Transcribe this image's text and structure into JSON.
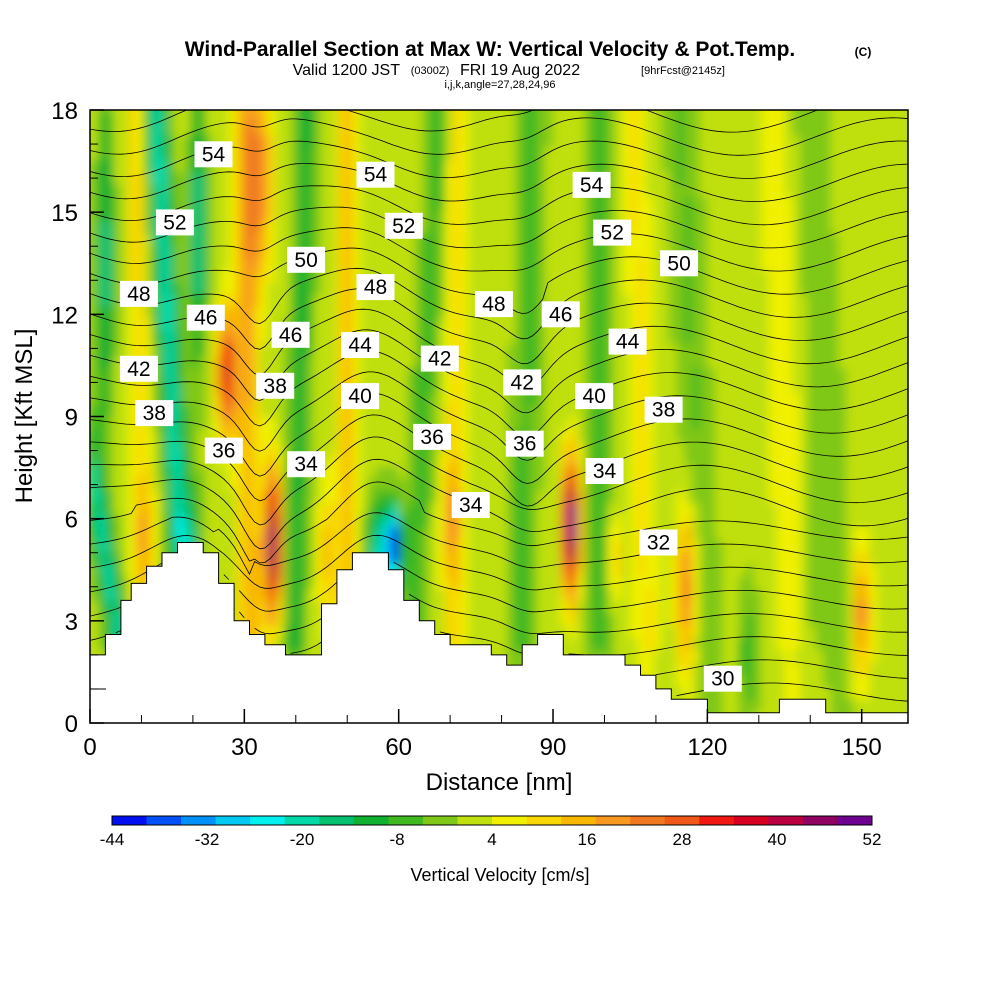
{
  "chart_data": {
    "type": "heatmap",
    "title": "Wind-Parallel Section at Max W: Vertical Velocity & Pot.Temp.",
    "copyright": "(C)",
    "subtitle": {
      "valid_prefix": "Valid 1200 JST",
      "utc": "(0300Z)",
      "date": "FRI 19 Aug 2022",
      "forecast": "[9hrFcst@2145z]"
    },
    "grid_info": "i,j,k,angle=27,28,24,96",
    "xlabel": "Distance [nm]",
    "ylabel": "Height [Kft MSL]",
    "xlim": [
      0,
      159
    ],
    "ylim": [
      0,
      18
    ],
    "x_ticks": [
      0,
      30,
      60,
      90,
      120,
      150
    ],
    "y_ticks": [
      0,
      3,
      6,
      9,
      12,
      15,
      18
    ],
    "colorbar": {
      "label": "Vertical Velocity [cm/s]",
      "tick_labels": [
        "-44",
        "-32",
        "-20",
        "-8",
        "4",
        "16",
        "28",
        "40",
        "52"
      ],
      "colors": [
        "#0010f0",
        "#0050f8",
        "#0090f8",
        "#00c8f0",
        "#00f0f0",
        "#00d8a8",
        "#00c070",
        "#10b030",
        "#40b820",
        "#80c818",
        "#c0e010",
        "#f0f000",
        "#f8d800",
        "#f8b800",
        "#f89820",
        "#f07820",
        "#f05818",
        "#f01810",
        "#d80020",
        "#b80040",
        "#900060",
        "#700090"
      ]
    },
    "terrain": [
      [
        0,
        2
      ],
      [
        3,
        2
      ],
      [
        3,
        2.6
      ],
      [
        6,
        2.6
      ],
      [
        6,
        3.6
      ],
      [
        8,
        3.6
      ],
      [
        8,
        4.1
      ],
      [
        11,
        4.1
      ],
      [
        11,
        4.6
      ],
      [
        14,
        4.6
      ],
      [
        14,
        5.0
      ],
      [
        17,
        5.0
      ],
      [
        17,
        5.3
      ],
      [
        22,
        5.3
      ],
      [
        22,
        5.0
      ],
      [
        25,
        5.0
      ],
      [
        25,
        4.1
      ],
      [
        28,
        4.1
      ],
      [
        28,
        3.0
      ],
      [
        31,
        3.0
      ],
      [
        31,
        2.6
      ],
      [
        34,
        2.6
      ],
      [
        34,
        2.3
      ],
      [
        38,
        2.3
      ],
      [
        38,
        2.0
      ],
      [
        45,
        2.0
      ],
      [
        45,
        3.5
      ],
      [
        48,
        3.5
      ],
      [
        48,
        4.5
      ],
      [
        51,
        4.5
      ],
      [
        51,
        5.0
      ],
      [
        58,
        5.0
      ],
      [
        58,
        4.5
      ],
      [
        61,
        4.5
      ],
      [
        61,
        3.6
      ],
      [
        64,
        3.6
      ],
      [
        64,
        3.0
      ],
      [
        67,
        3.0
      ],
      [
        67,
        2.6
      ],
      [
        70,
        2.6
      ],
      [
        70,
        2.3
      ],
      [
        78,
        2.3
      ],
      [
        78,
        2.0
      ],
      [
        81,
        2.0
      ],
      [
        81,
        1.7
      ],
      [
        84,
        1.7
      ],
      [
        84,
        2.3
      ],
      [
        87,
        2.3
      ],
      [
        87,
        2.6
      ],
      [
        92,
        2.6
      ],
      [
        92,
        2.0
      ],
      [
        104,
        2.0
      ],
      [
        104,
        1.7
      ],
      [
        107,
        1.7
      ],
      [
        107,
        1.4
      ],
      [
        110,
        1.4
      ],
      [
        110,
        1.0
      ],
      [
        113,
        1.0
      ],
      [
        113,
        0.7
      ],
      [
        120,
        0.7
      ],
      [
        120,
        0.3
      ],
      [
        134,
        0.3
      ],
      [
        134,
        0.7
      ],
      [
        143,
        0.7
      ],
      [
        143,
        0.3
      ],
      [
        159,
        0.3
      ]
    ],
    "velocity_features": [
      {
        "x": 35.5,
        "y": 5.3,
        "value": 45
      },
      {
        "x": 93.5,
        "y": 5.8,
        "value": 52
      },
      {
        "x": 26.5,
        "y": 10.3,
        "value": 38
      },
      {
        "x": 59,
        "y": 5.3,
        "value": -44
      },
      {
        "x": 22,
        "y": 14.5,
        "value": -26
      },
      {
        "x": 3,
        "y": 14,
        "value": -22
      },
      {
        "x": 70,
        "y": 5.8,
        "value": 12
      },
      {
        "x": 115,
        "y": 4.0,
        "value": 24
      },
      {
        "x": 150,
        "y": 3.2,
        "value": 20
      },
      {
        "x": 128,
        "y": 2.0,
        "value": -10
      },
      {
        "x": 80,
        "y": 13,
        "value": -6
      },
      {
        "x": 145,
        "y": 13,
        "value": 2
      }
    ],
    "contour_labels": [
      {
        "text": "54",
        "x": 24,
        "y": 16.7
      },
      {
        "text": "54",
        "x": 55.5,
        "y": 16.1
      },
      {
        "text": "54",
        "x": 97.5,
        "y": 15.8
      },
      {
        "text": "52",
        "x": 16.5,
        "y": 14.7
      },
      {
        "text": "52",
        "x": 61,
        "y": 14.6
      },
      {
        "text": "52",
        "x": 101.5,
        "y": 14.4
      },
      {
        "text": "50",
        "x": 42,
        "y": 13.6
      },
      {
        "text": "50",
        "x": 114.5,
        "y": 13.5
      },
      {
        "text": "48",
        "x": 9.5,
        "y": 12.6
      },
      {
        "text": "48",
        "x": 55.5,
        "y": 12.8
      },
      {
        "text": "48",
        "x": 78.5,
        "y": 12.3
      },
      {
        "text": "46",
        "x": 22.5,
        "y": 11.9
      },
      {
        "text": "46",
        "x": 39,
        "y": 11.4
      },
      {
        "text": "46",
        "x": 91.5,
        "y": 12.0
      },
      {
        "text": "44",
        "x": 52.5,
        "y": 11.1
      },
      {
        "text": "44",
        "x": 104.5,
        "y": 11.2
      },
      {
        "text": "42",
        "x": 9.5,
        "y": 10.4
      },
      {
        "text": "42",
        "x": 68,
        "y": 10.7
      },
      {
        "text": "42",
        "x": 84,
        "y": 10.0
      },
      {
        "text": "40",
        "x": 52.5,
        "y": 9.6
      },
      {
        "text": "40",
        "x": 98,
        "y": 9.6
      },
      {
        "text": "38",
        "x": 12.5,
        "y": 9.1
      },
      {
        "text": "38",
        "x": 36,
        "y": 9.9
      },
      {
        "text": "38",
        "x": 111.5,
        "y": 9.2
      },
      {
        "text": "36",
        "x": 26,
        "y": 8.0
      },
      {
        "text": "36",
        "x": 66.5,
        "y": 8.4
      },
      {
        "text": "36",
        "x": 84.5,
        "y": 8.2
      },
      {
        "text": "34",
        "x": 42,
        "y": 7.6
      },
      {
        "text": "34",
        "x": 74,
        "y": 6.4
      },
      {
        "text": "34",
        "x": 100,
        "y": 7.4
      },
      {
        "text": "32",
        "x": 110.5,
        "y": 5.3
      },
      {
        "text": "30",
        "x": 123,
        "y": 1.3
      }
    ]
  }
}
